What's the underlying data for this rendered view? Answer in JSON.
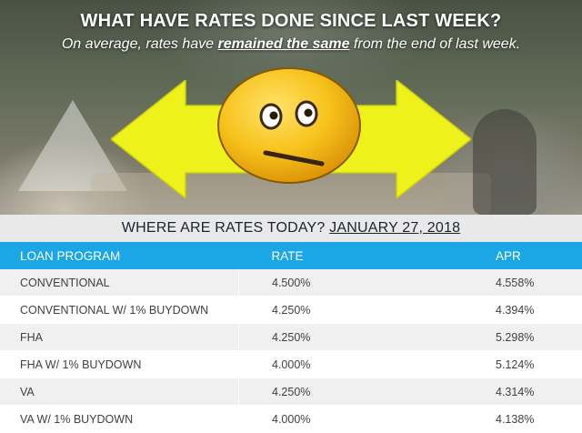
{
  "header": {
    "title": "WHAT HAVE RATES DONE SINCE LAST WEEK?",
    "subtitle_prefix": "On average, rates have ",
    "subtitle_highlight": "remained the same",
    "subtitle_suffix": " from the end of last week."
  },
  "graphic": {
    "arrow_icon": "double-arrow-horizontal-icon",
    "emoji_icon": "neutral-face-icon",
    "arrow_color": "#eef21a",
    "emoji_color": "#f7c21b"
  },
  "date_bar": {
    "label": "WHERE ARE RATES TODAY? ",
    "date": "JANUARY 27, 2018"
  },
  "table": {
    "header_color": "#1ba7e5",
    "columns": [
      "LOAN PROGRAM",
      "RATE",
      "APR"
    ],
    "rows": [
      {
        "program": "CONVENTIONAL",
        "rate": "4.500%",
        "apr": "4.558%"
      },
      {
        "program": "CONVENTIONAL W/ 1% BUYDOWN",
        "rate": "4.250%",
        "apr": "4.394%"
      },
      {
        "program": "FHA",
        "rate": "4.250%",
        "apr": "5.298%"
      },
      {
        "program": "FHA W/ 1% BUYDOWN",
        "rate": "4.000%",
        "apr": "5.124%"
      },
      {
        "program": "VA",
        "rate": "4.250%",
        "apr": "4.314%"
      },
      {
        "program": "VA W/ 1% BUYDOWN",
        "rate": "4.000%",
        "apr": "4.138%"
      }
    ]
  }
}
